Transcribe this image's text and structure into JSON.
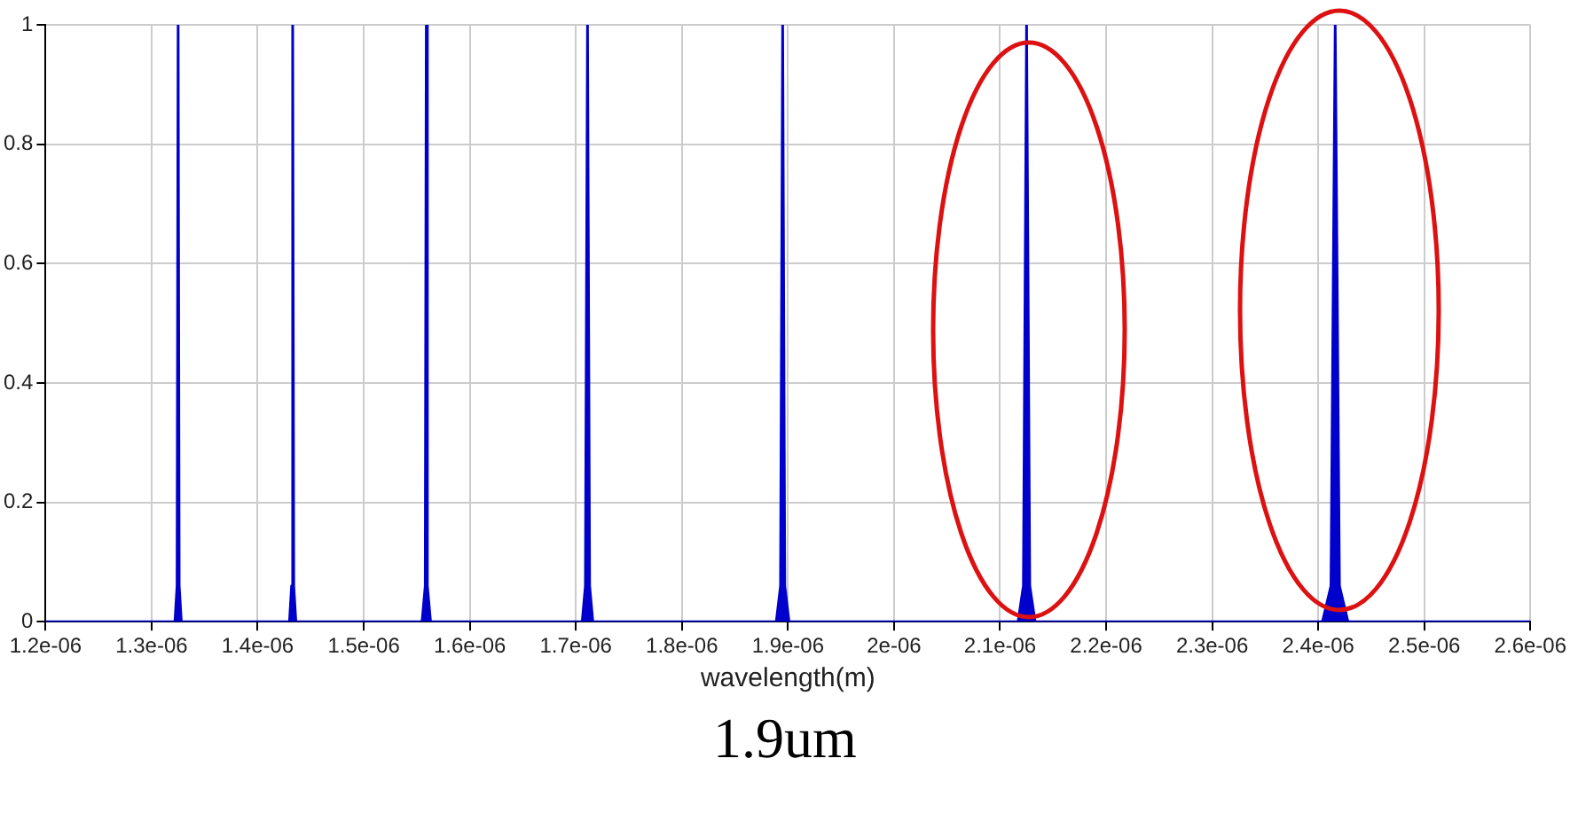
{
  "chart_data": {
    "type": "area",
    "xlabel": "wavelength(m)",
    "annotations": [
      "1.9um"
    ],
    "x": [
      1.2e-06,
      1.322e-06,
      1.324e-06,
      1.325e-06,
      1.326e-06,
      1.328e-06,
      1.43e-06,
      1.432e-06,
      1.433e-06,
      1.434e-06,
      1.436e-06,
      1.555e-06,
      1.558e-06,
      1.559e-06,
      1.56e-06,
      1.563e-06,
      1.706e-06,
      1.709e-06,
      1.711e-06,
      1.713e-06,
      1.716e-06,
      1.889e-06,
      1.893e-06,
      1.895e-06,
      1.897e-06,
      1.901e-06,
      2.117e-06,
      2.122e-06,
      2.125e-06,
      2.128e-06,
      2.133e-06,
      2.404e-06,
      2.412e-06,
      2.416e-06,
      2.42e-06,
      2.428e-06,
      2.6e-06
    ],
    "series": [
      {
        "color": "#0000cc",
        "values": [
          0,
          0,
          0.06,
          1,
          0.06,
          0,
          0,
          0.06,
          1,
          0.06,
          0,
          0,
          0.06,
          1,
          0.06,
          0,
          0,
          0.06,
          1,
          0.06,
          0,
          0,
          0.06,
          1,
          0.06,
          0,
          0,
          0.06,
          1,
          0.06,
          0,
          0,
          0.06,
          1,
          0.06,
          0,
          0
        ]
      }
    ],
    "xlim": [
      1.2e-06,
      2.6e-06
    ],
    "xticks": [
      {
        "value": 1.2e-06,
        "label": "1.2e-06"
      },
      {
        "value": 1.3e-06,
        "label": "1.3e-06"
      },
      {
        "value": 1.4e-06,
        "label": "1.4e-06"
      },
      {
        "value": 1.5e-06,
        "label": "1.5e-06"
      },
      {
        "value": 1.6e-06,
        "label": "1.6e-06"
      },
      {
        "value": 1.7e-06,
        "label": "1.7e-06"
      },
      {
        "value": 1.8e-06,
        "label": "1.8e-06"
      },
      {
        "value": 1.9e-06,
        "label": "1.9e-06"
      },
      {
        "value": 2e-06,
        "label": "2e-06"
      },
      {
        "value": 2.1e-06,
        "label": "2.1e-06"
      },
      {
        "value": 2.2e-06,
        "label": "2.2e-06"
      },
      {
        "value": 2.3e-06,
        "label": "2.3e-06"
      },
      {
        "value": 2.4e-06,
        "label": "2.4e-06"
      },
      {
        "value": 2.5e-06,
        "label": "2.5e-06"
      },
      {
        "value": 2.6e-06,
        "label": "2.6e-06"
      }
    ],
    "ylim": [
      0,
      1
    ],
    "yticks": [
      0,
      0.2,
      0.4,
      0.6,
      0.8,
      1
    ],
    "grid": true,
    "marker": "none"
  }
}
